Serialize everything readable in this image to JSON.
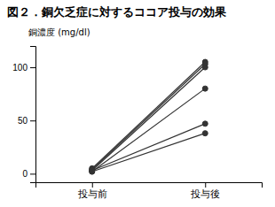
{
  "chart_data": {
    "type": "line",
    "title": "図２．銅欠乏症に対するココア投与の効果",
    "ylabel": "銅濃度 (mg/dl)",
    "categories": [
      "投与前",
      "投与後"
    ],
    "series": [
      {
        "values": [
          5,
          105
        ]
      },
      {
        "values": [
          4,
          103
        ]
      },
      {
        "values": [
          3,
          100
        ]
      },
      {
        "values": [
          2,
          80
        ]
      },
      {
        "values": [
          3,
          47
        ]
      },
      {
        "values": [
          2,
          38
        ]
      }
    ],
    "color": "#333333",
    "marker": "circle",
    "ylim": [
      -8,
      120
    ],
    "yticks": [
      0,
      50,
      100
    ],
    "grid": false
  }
}
